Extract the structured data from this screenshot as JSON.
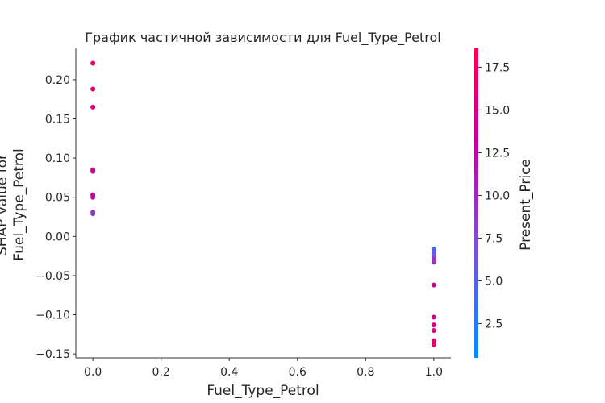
{
  "chart_data": {
    "type": "scatter",
    "title": "График частичной зависимости для Fuel_Type_Petrol",
    "xlabel": "Fuel_Type_Petrol",
    "ylabel_line1": "SHAP value for",
    "ylabel_line2": "Fuel_Type_Petrol",
    "xlim": [
      -0.05,
      1.05
    ],
    "ylim": [
      -0.155,
      0.24
    ],
    "xticks": [
      0.0,
      0.2,
      0.4,
      0.6,
      0.8,
      1.0
    ],
    "xtick_labels": [
      "0.0",
      "0.2",
      "0.4",
      "0.6",
      "0.8",
      "1.0"
    ],
    "yticks": [
      0.2,
      0.15,
      0.1,
      0.05,
      0.0,
      -0.05,
      -0.1,
      -0.15
    ],
    "ytick_labels": [
      "0.20",
      "0.15",
      "0.10",
      "0.05",
      "0.00",
      "−0.05",
      "−0.10",
      "−0.15"
    ],
    "colorbar": {
      "label": "Present_Price",
      "range": [
        0.5,
        18.6
      ],
      "ticks": [
        2.5,
        5.0,
        7.5,
        10.0,
        12.5,
        15.0,
        17.5
      ],
      "tick_labels": [
        "2.5",
        "5.0",
        "7.5",
        "10.0",
        "12.5",
        "15.0",
        "17.5"
      ],
      "colormap": [
        "#008bfb",
        "#7a52d8",
        "#c200a0",
        "#ff0052"
      ]
    },
    "points": [
      {
        "x": 0,
        "y": 0.221,
        "c": 17.0
      },
      {
        "x": 0,
        "y": 0.188,
        "c": 16.5
      },
      {
        "x": 0,
        "y": 0.165,
        "c": 16.0
      },
      {
        "x": 0,
        "y": 0.085,
        "c": 15.0
      },
      {
        "x": 0,
        "y": 0.083,
        "c": 14.0
      },
      {
        "x": 0,
        "y": 0.053,
        "c": 13.0
      },
      {
        "x": 0,
        "y": 0.05,
        "c": 12.5
      },
      {
        "x": 0,
        "y": 0.031,
        "c": 9.0
      },
      {
        "x": 0,
        "y": 0.029,
        "c": 8.0
      },
      {
        "x": 1,
        "y": -0.016,
        "c": 4.0
      },
      {
        "x": 1,
        "y": -0.018,
        "c": 4.5
      },
      {
        "x": 1,
        "y": -0.02,
        "c": 5.0
      },
      {
        "x": 1,
        "y": -0.022,
        "c": 5.5
      },
      {
        "x": 1,
        "y": -0.024,
        "c": 6.0
      },
      {
        "x": 1,
        "y": -0.026,
        "c": 7.0
      },
      {
        "x": 1,
        "y": -0.028,
        "c": 8.0
      },
      {
        "x": 1,
        "y": -0.03,
        "c": 9.0
      },
      {
        "x": 1,
        "y": -0.033,
        "c": 9.5
      },
      {
        "x": 1,
        "y": -0.062,
        "c": 14.0
      },
      {
        "x": 1,
        "y": -0.103,
        "c": 14.5
      },
      {
        "x": 1,
        "y": -0.113,
        "c": 15.0
      },
      {
        "x": 1,
        "y": -0.12,
        "c": 15.5
      },
      {
        "x": 1,
        "y": -0.133,
        "c": 16.0
      },
      {
        "x": 1,
        "y": -0.138,
        "c": 16.5
      }
    ]
  }
}
